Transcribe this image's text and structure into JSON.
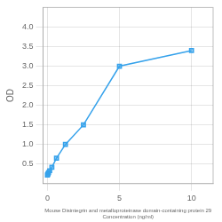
{
  "chart_data": {
    "type": "line",
    "x": [
      0.0,
      0.04,
      0.08,
      0.16,
      0.31,
      0.63,
      1.25,
      2.5,
      5.0,
      10.0
    ],
    "values": [
      0.22,
      0.25,
      0.28,
      0.33,
      0.42,
      0.65,
      1.0,
      1.5,
      3.0,
      3.4
    ],
    "marker": "square",
    "xlabel": "Mouse Disintegrin and metalloproteinase domain-containing protein 29\nConcentration (ng/ml)",
    "ylabel": "OD",
    "xlim": [
      -0.3,
      11.5
    ],
    "ylim": [
      0.0,
      4.5
    ],
    "xticks": [
      0,
      5,
      10
    ],
    "yticks": [
      0.5,
      {
        "value": 1.0,
        "label": "1.0"
      },
      1.5,
      {
        "value": 2.0,
        "label": "2.0"
      },
      2.5,
      {
        "value": 3.0,
        "label": "3.0"
      },
      3.5,
      {
        "value": 4.0,
        "label": "4.0"
      }
    ],
    "grid": true
  }
}
